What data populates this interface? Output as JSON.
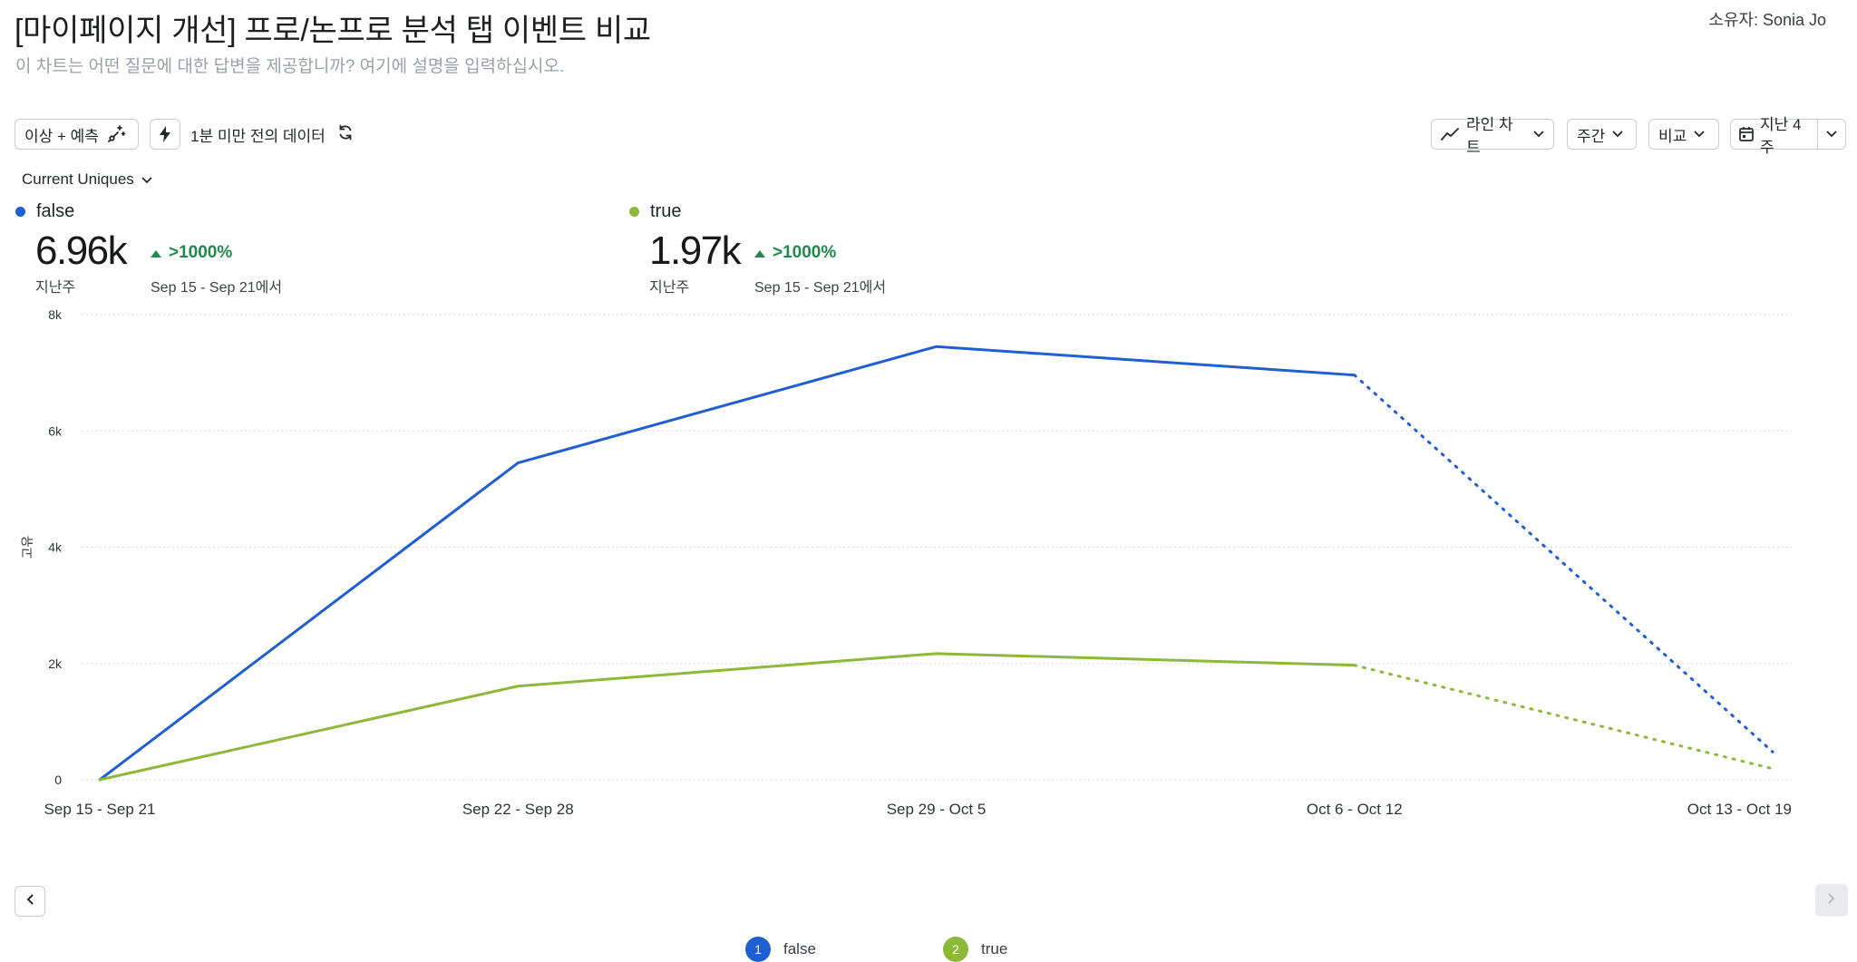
{
  "header": {
    "title": "[마이페이지 개선] 프로/논프로 분석 탭 이벤트 비교",
    "subtitle": "이 차트는 어떤 질문에 대한 답변을 제공합니까? 여기에 설명을 입력하십시오.",
    "owner": "소유자: Sonia Jo"
  },
  "toolbar": {
    "anomaly_label": "이상 + 예측",
    "freshness_label": "1분 미만 전의 데이터",
    "chart_type_label": "라인 차트",
    "interval_label": "주간",
    "compare_label": "비교",
    "date_range_label": "지난 4주"
  },
  "metric": {
    "label": "Current Uniques"
  },
  "summary": [
    {
      "name": "false",
      "color": "#1f5fd1",
      "value": "6.96k",
      "period": "지난주",
      "delta": ">1000%",
      "delta_sub": "Sep 15 - Sep 21에서"
    },
    {
      "name": "true",
      "color": "#8db93a",
      "value": "1.97k",
      "period": "지난주",
      "delta": ">1000%",
      "delta_sub": "Sep 15 - Sep 21에서"
    }
  ],
  "legend": [
    {
      "index": "1",
      "label": "false",
      "color": "#1f5fd1"
    },
    {
      "index": "2",
      "label": "true",
      "color": "#8db93a"
    }
  ],
  "chart_data": {
    "type": "line",
    "categories": [
      "Sep 15 - Sep 21",
      "Sep 22 - Sep 28",
      "Sep 29 - Oct 5",
      "Oct 6 - Oct 12",
      "Oct 13 - Oct 19"
    ],
    "series": [
      {
        "name": "false",
        "color": "#1f5fd1",
        "values": [
          0,
          5450,
          7450,
          6960,
          480
        ],
        "projected_from_index": 3
      },
      {
        "name": "true",
        "color": "#8db93a",
        "values": [
          0,
          1610,
          2170,
          1970,
          190
        ],
        "projected_from_index": 3
      }
    ],
    "ylabel": "고유",
    "ylim": [
      0,
      8000
    ],
    "yticks": [
      0,
      2000,
      4000,
      6000,
      8000
    ],
    "ytick_labels": [
      "0",
      "2k",
      "4k",
      "6k",
      "8k"
    ],
    "grid": true
  }
}
